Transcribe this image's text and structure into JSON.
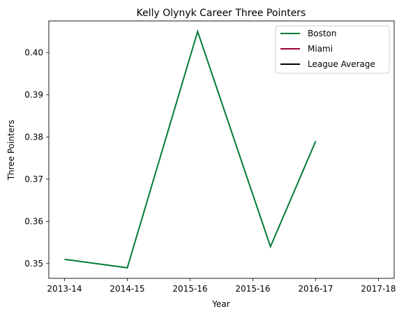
{
  "chart_data": {
    "type": "line",
    "title": "Kelly Olynyk Career Three Pointers",
    "xlabel": "Year",
    "ylabel": "Three Pointers",
    "categories": [
      "2013-14",
      "2014-15",
      "2015-16",
      "2015-16",
      "2016-17",
      "2017-18"
    ],
    "y_ticks": [
      "0.35",
      "0.36",
      "0.37",
      "0.38",
      "0.39",
      "0.40"
    ],
    "ylim": [
      0.3465,
      0.4075
    ],
    "grid": false,
    "legend_position": "top-right",
    "series": [
      {
        "name": "Boston",
        "color": "#007a33",
        "x": [
          0,
          1.0,
          2.12,
          3.28,
          4.0
        ],
        "values": [
          0.351,
          0.349,
          0.405,
          0.354,
          0.379
        ]
      },
      {
        "name": "Miami",
        "color": "#98002e",
        "x": [],
        "values": []
      },
      {
        "name": "League Average",
        "color": "#000000",
        "x": [],
        "values": []
      }
    ]
  }
}
